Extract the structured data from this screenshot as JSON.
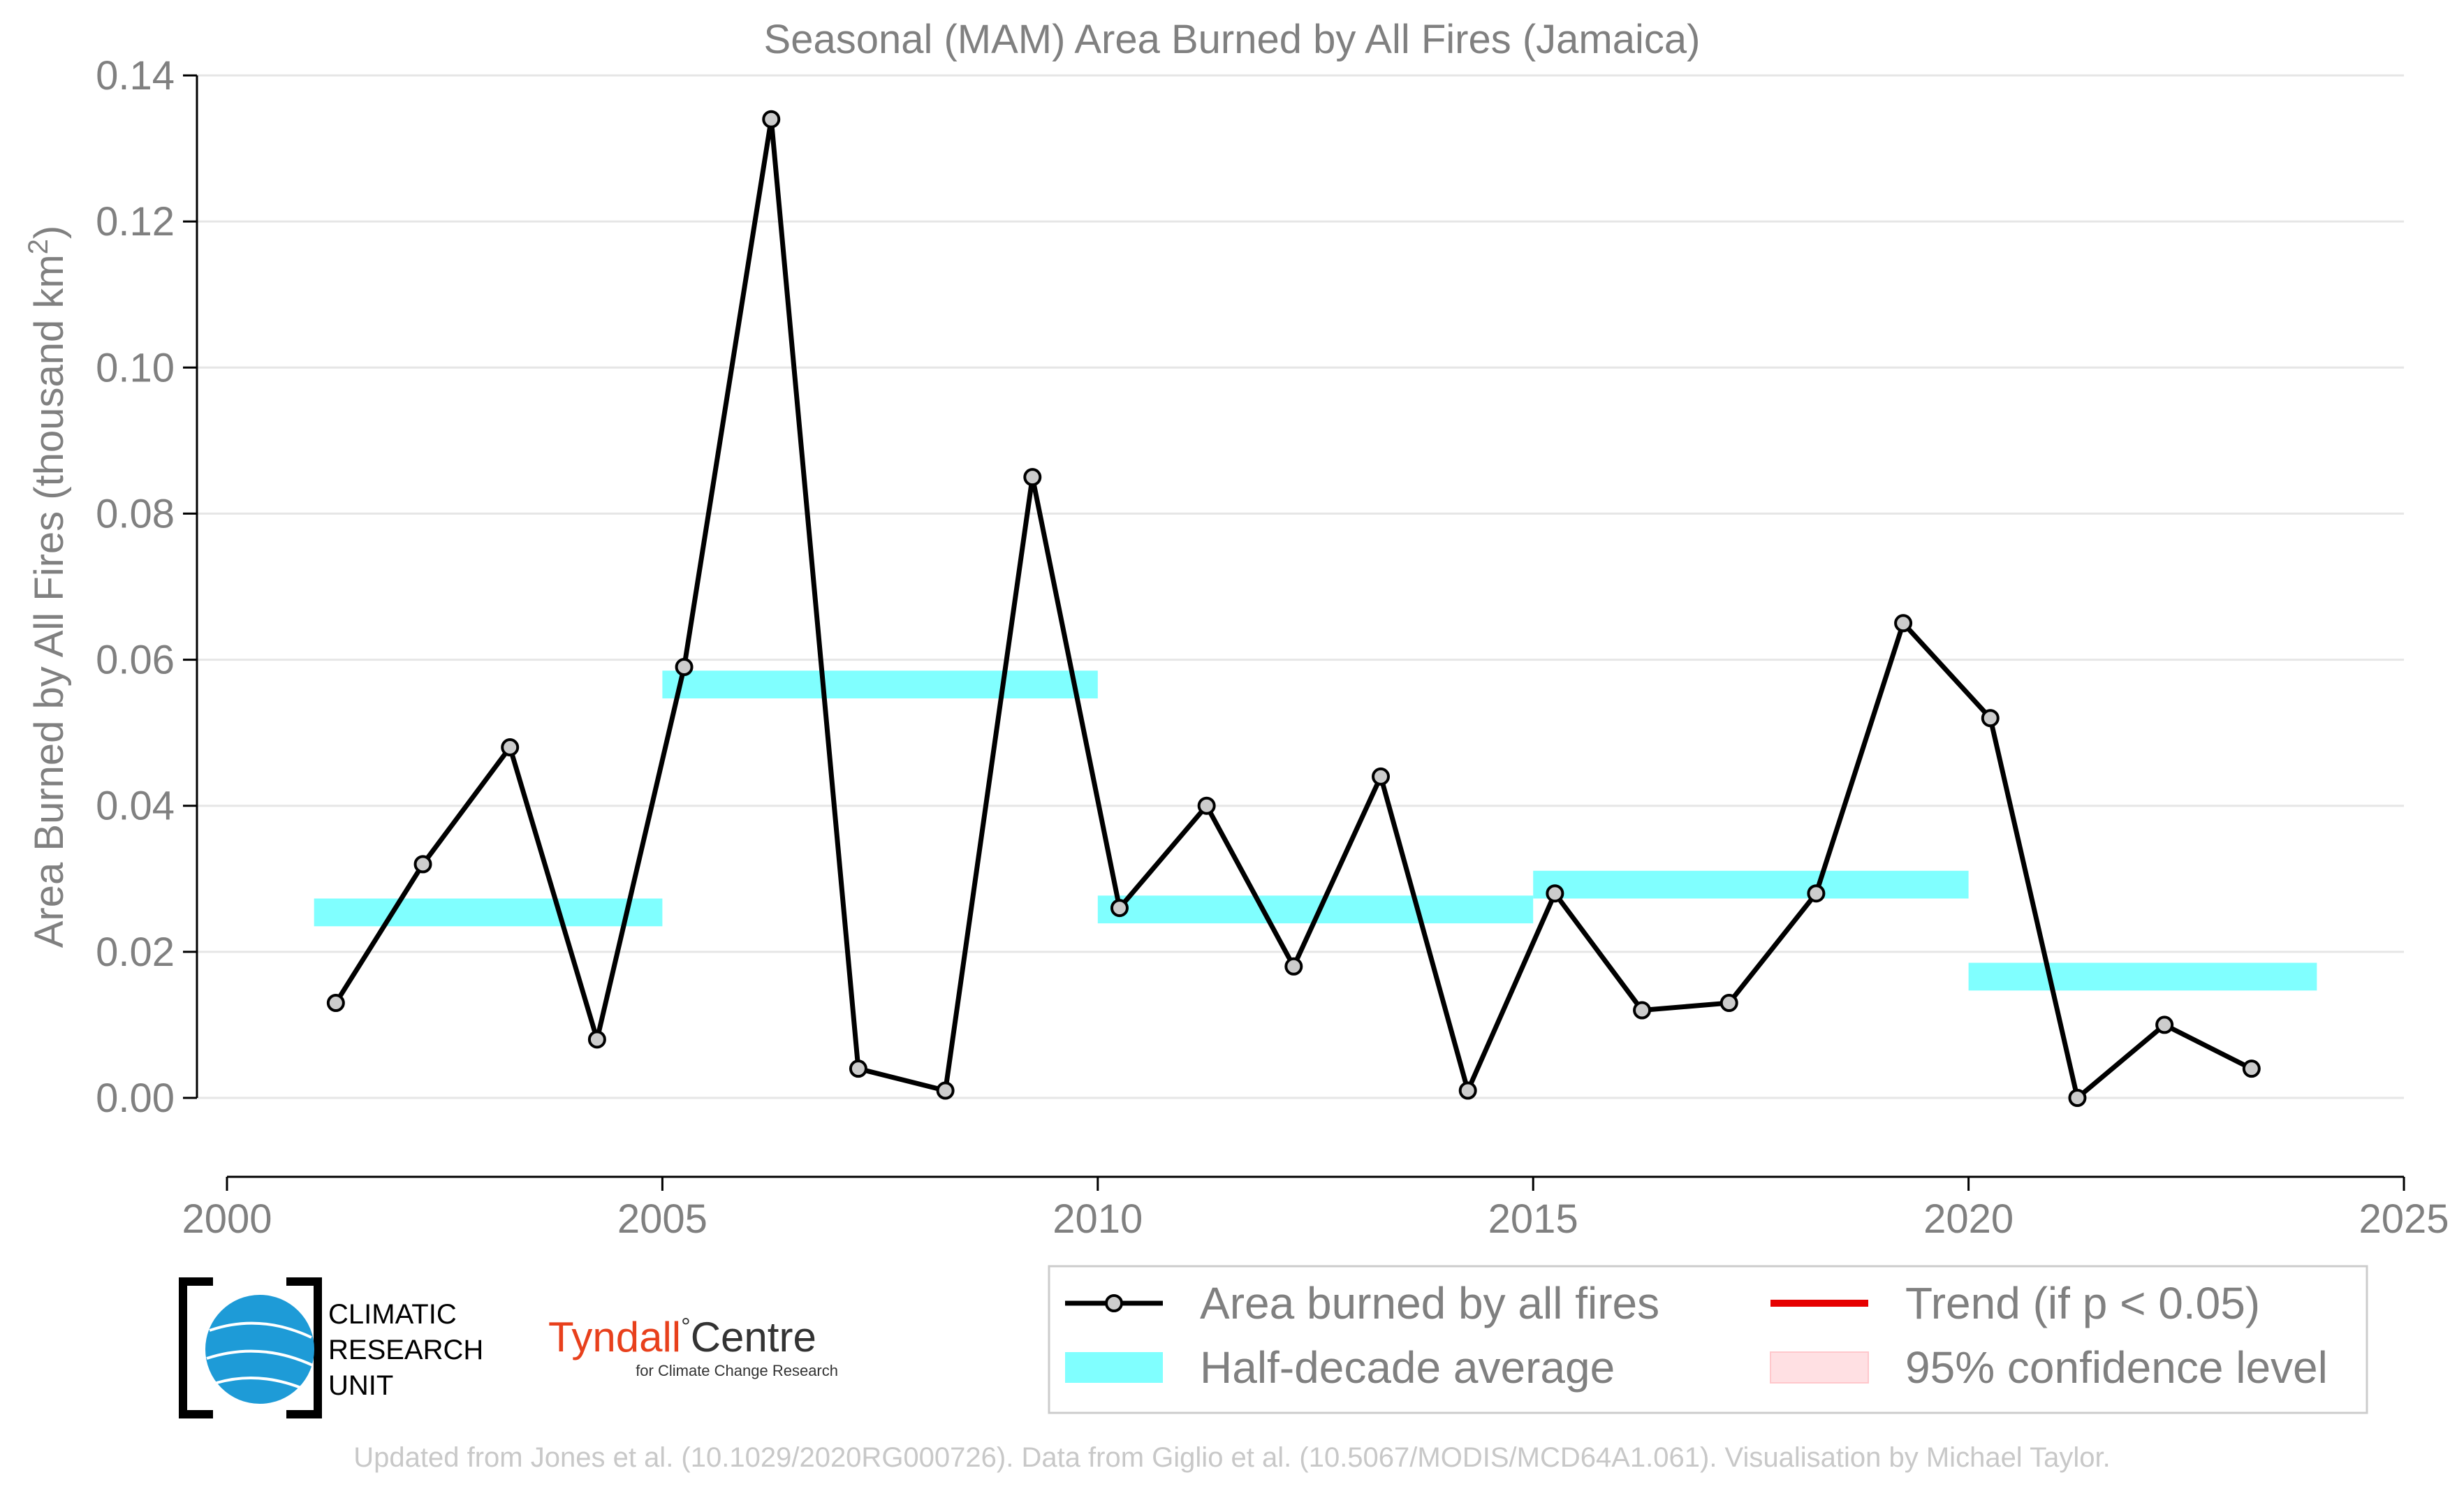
{
  "chart_data": {
    "type": "line",
    "title": "Seasonal (MAM) Area Burned by All Fires (Jamaica)",
    "ylabel": "Area Burned by All Fires (thousand km²)",
    "ylabel_main": "Area Burned by All Fires (thousand km",
    "ylabel_sup": "2",
    "ylabel_end": ")",
    "xlabel": "",
    "xlim": [
      2000,
      2025
    ],
    "ylim": [
      -0.011,
      0.14
    ],
    "x_ticks": [
      "2000",
      "2005",
      "2010",
      "2015",
      "2020",
      "2025"
    ],
    "y_ticks": [
      "0.00",
      "0.02",
      "0.04",
      "0.06",
      "0.08",
      "0.10",
      "0.12",
      "0.14"
    ],
    "grid": "horizontal",
    "legend_placement": "bottom-right",
    "series": [
      {
        "name": "Area burned by all fires",
        "x": [
          2001.25,
          2002.25,
          2003.25,
          2004.25,
          2005.25,
          2006.25,
          2007.25,
          2008.25,
          2009.25,
          2010.25,
          2011.25,
          2012.25,
          2013.25,
          2014.25,
          2015.25,
          2016.25,
          2017.25,
          2018.25,
          2019.25,
          2020.25,
          2021.25,
          2022.25,
          2023.25
        ],
        "values": [
          0.013,
          0.032,
          0.048,
          0.008,
          0.059,
          0.134,
          0.004,
          0.001,
          0.085,
          0.026,
          0.04,
          0.018,
          0.044,
          0.001,
          0.028,
          0.012,
          0.013,
          0.028,
          0.065,
          0.052,
          0.0,
          0.01,
          0.004
        ],
        "color": "#000000",
        "marker_fill": "#cccccc"
      }
    ],
    "half_decade_averages": {
      "name": "Half-decade average",
      "color": "#80ffff",
      "segments": [
        {
          "start": 2001,
          "end": 2005,
          "value": 0.0254
        },
        {
          "start": 2005,
          "end": 2010,
          "value": 0.0566
        },
        {
          "start": 2010,
          "end": 2015,
          "value": 0.0258
        },
        {
          "start": 2015,
          "end": 2020,
          "value": 0.0292
        },
        {
          "start": 2020,
          "end": 2024,
          "value": 0.0166
        }
      ]
    },
    "legend": [
      {
        "label": "Area burned by all fires",
        "kind": "line-marker",
        "color": "#000000"
      },
      {
        "label": "Trend (if p < 0.05)",
        "kind": "line",
        "color": "#e60000"
      },
      {
        "label": "Half-decade average",
        "kind": "band",
        "color": "#80ffff"
      },
      {
        "label": "95% confidence level",
        "kind": "patch",
        "color": "#ffe0e3"
      }
    ]
  },
  "logos": {
    "cru": {
      "line1": "CLIMATIC",
      "line2": "RESEARCH",
      "line3": "UNIT",
      "globe_color": "#1e9bd7"
    },
    "tyndall": {
      "name": "Tyndall",
      "degree": "°",
      "suffix": "Centre",
      "tagline": "for Climate Change Research",
      "color": "#e8401c"
    }
  },
  "credit": "Updated from Jones et al. (10.1029/2020RG000726). Data from Giglio et al. (10.5067/MODIS/MCD64A1.061). Visualisation by Michael Taylor."
}
